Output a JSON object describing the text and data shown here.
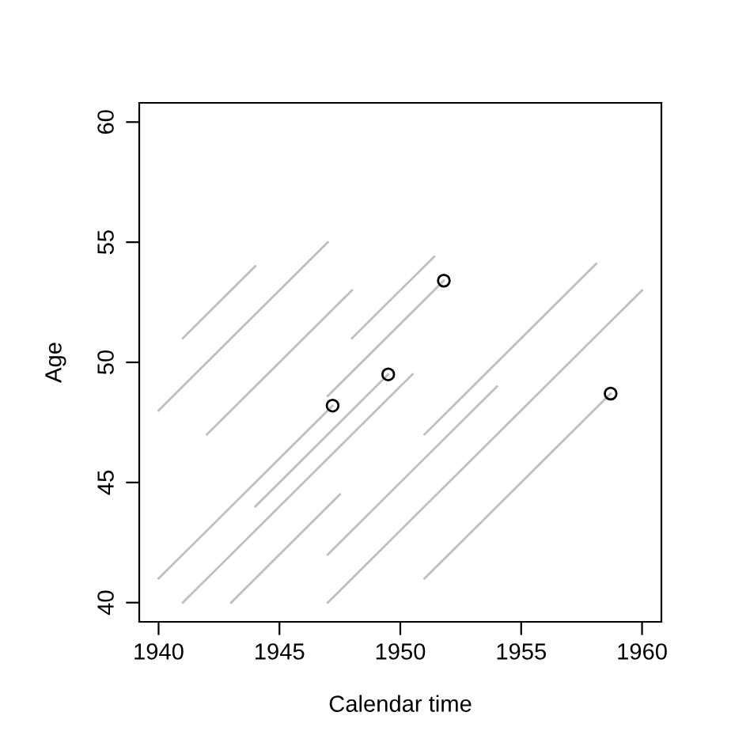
{
  "chart_data": {
    "type": "line",
    "xlabel": "Calendar time",
    "ylabel": "Age",
    "xlim": [
      1939.2,
      1960.8
    ],
    "ylim": [
      39.2,
      60.8
    ],
    "xticks": [
      1940,
      1945,
      1950,
      1955,
      1960
    ],
    "yticks": [
      40,
      45,
      50,
      55,
      60
    ],
    "grid": false,
    "marker": "none",
    "line_style": "solid",
    "series": [
      {
        "color": "#bebebe",
        "x": [
          1941,
          1944
        ],
        "values": [
          51,
          54
        ]
      },
      {
        "color": "#bebebe",
        "x": [
          1940,
          1947
        ],
        "values": [
          48,
          55
        ]
      },
      {
        "color": "#bebebe",
        "x": [
          1942,
          1948
        ],
        "values": [
          47,
          53
        ]
      },
      {
        "color": "#bebebe",
        "x": [
          1948,
          1951.4
        ],
        "values": [
          51,
          54.4
        ]
      },
      {
        "color": "#bebebe",
        "x": [
          1947,
          1951.8
        ],
        "values": [
          48.6,
          53.4
        ]
      },
      {
        "color": "#bebebe",
        "x": [
          1940,
          1947.2
        ],
        "values": [
          41,
          48.2
        ]
      },
      {
        "color": "#bebebe",
        "x": [
          1941,
          1950.5
        ],
        "values": [
          40,
          49.5
        ]
      },
      {
        "color": "#bebebe",
        "x": [
          1944,
          1949.5
        ],
        "values": [
          44,
          49.5
        ]
      },
      {
        "color": "#bebebe",
        "x": [
          1943,
          1947.5
        ],
        "values": [
          40,
          44.5
        ]
      },
      {
        "color": "#bebebe",
        "x": [
          1947,
          1954
        ],
        "values": [
          42,
          49
        ]
      },
      {
        "color": "#bebebe",
        "x": [
          1947,
          1960
        ],
        "values": [
          40,
          53
        ]
      },
      {
        "color": "#bebebe",
        "x": [
          1951,
          1958.1
        ],
        "values": [
          47,
          54.1
        ]
      },
      {
        "color": "#bebebe",
        "x": [
          1951,
          1958.7
        ],
        "values": [
          41,
          48.7
        ]
      },
      {
        "type": "scatter",
        "color": "#000000",
        "marker": "circle",
        "x": [
          1947.2,
          1949.5,
          1951.8,
          1958.7
        ],
        "values": [
          48.2,
          49.5,
          53.4,
          48.7
        ]
      }
    ]
  }
}
